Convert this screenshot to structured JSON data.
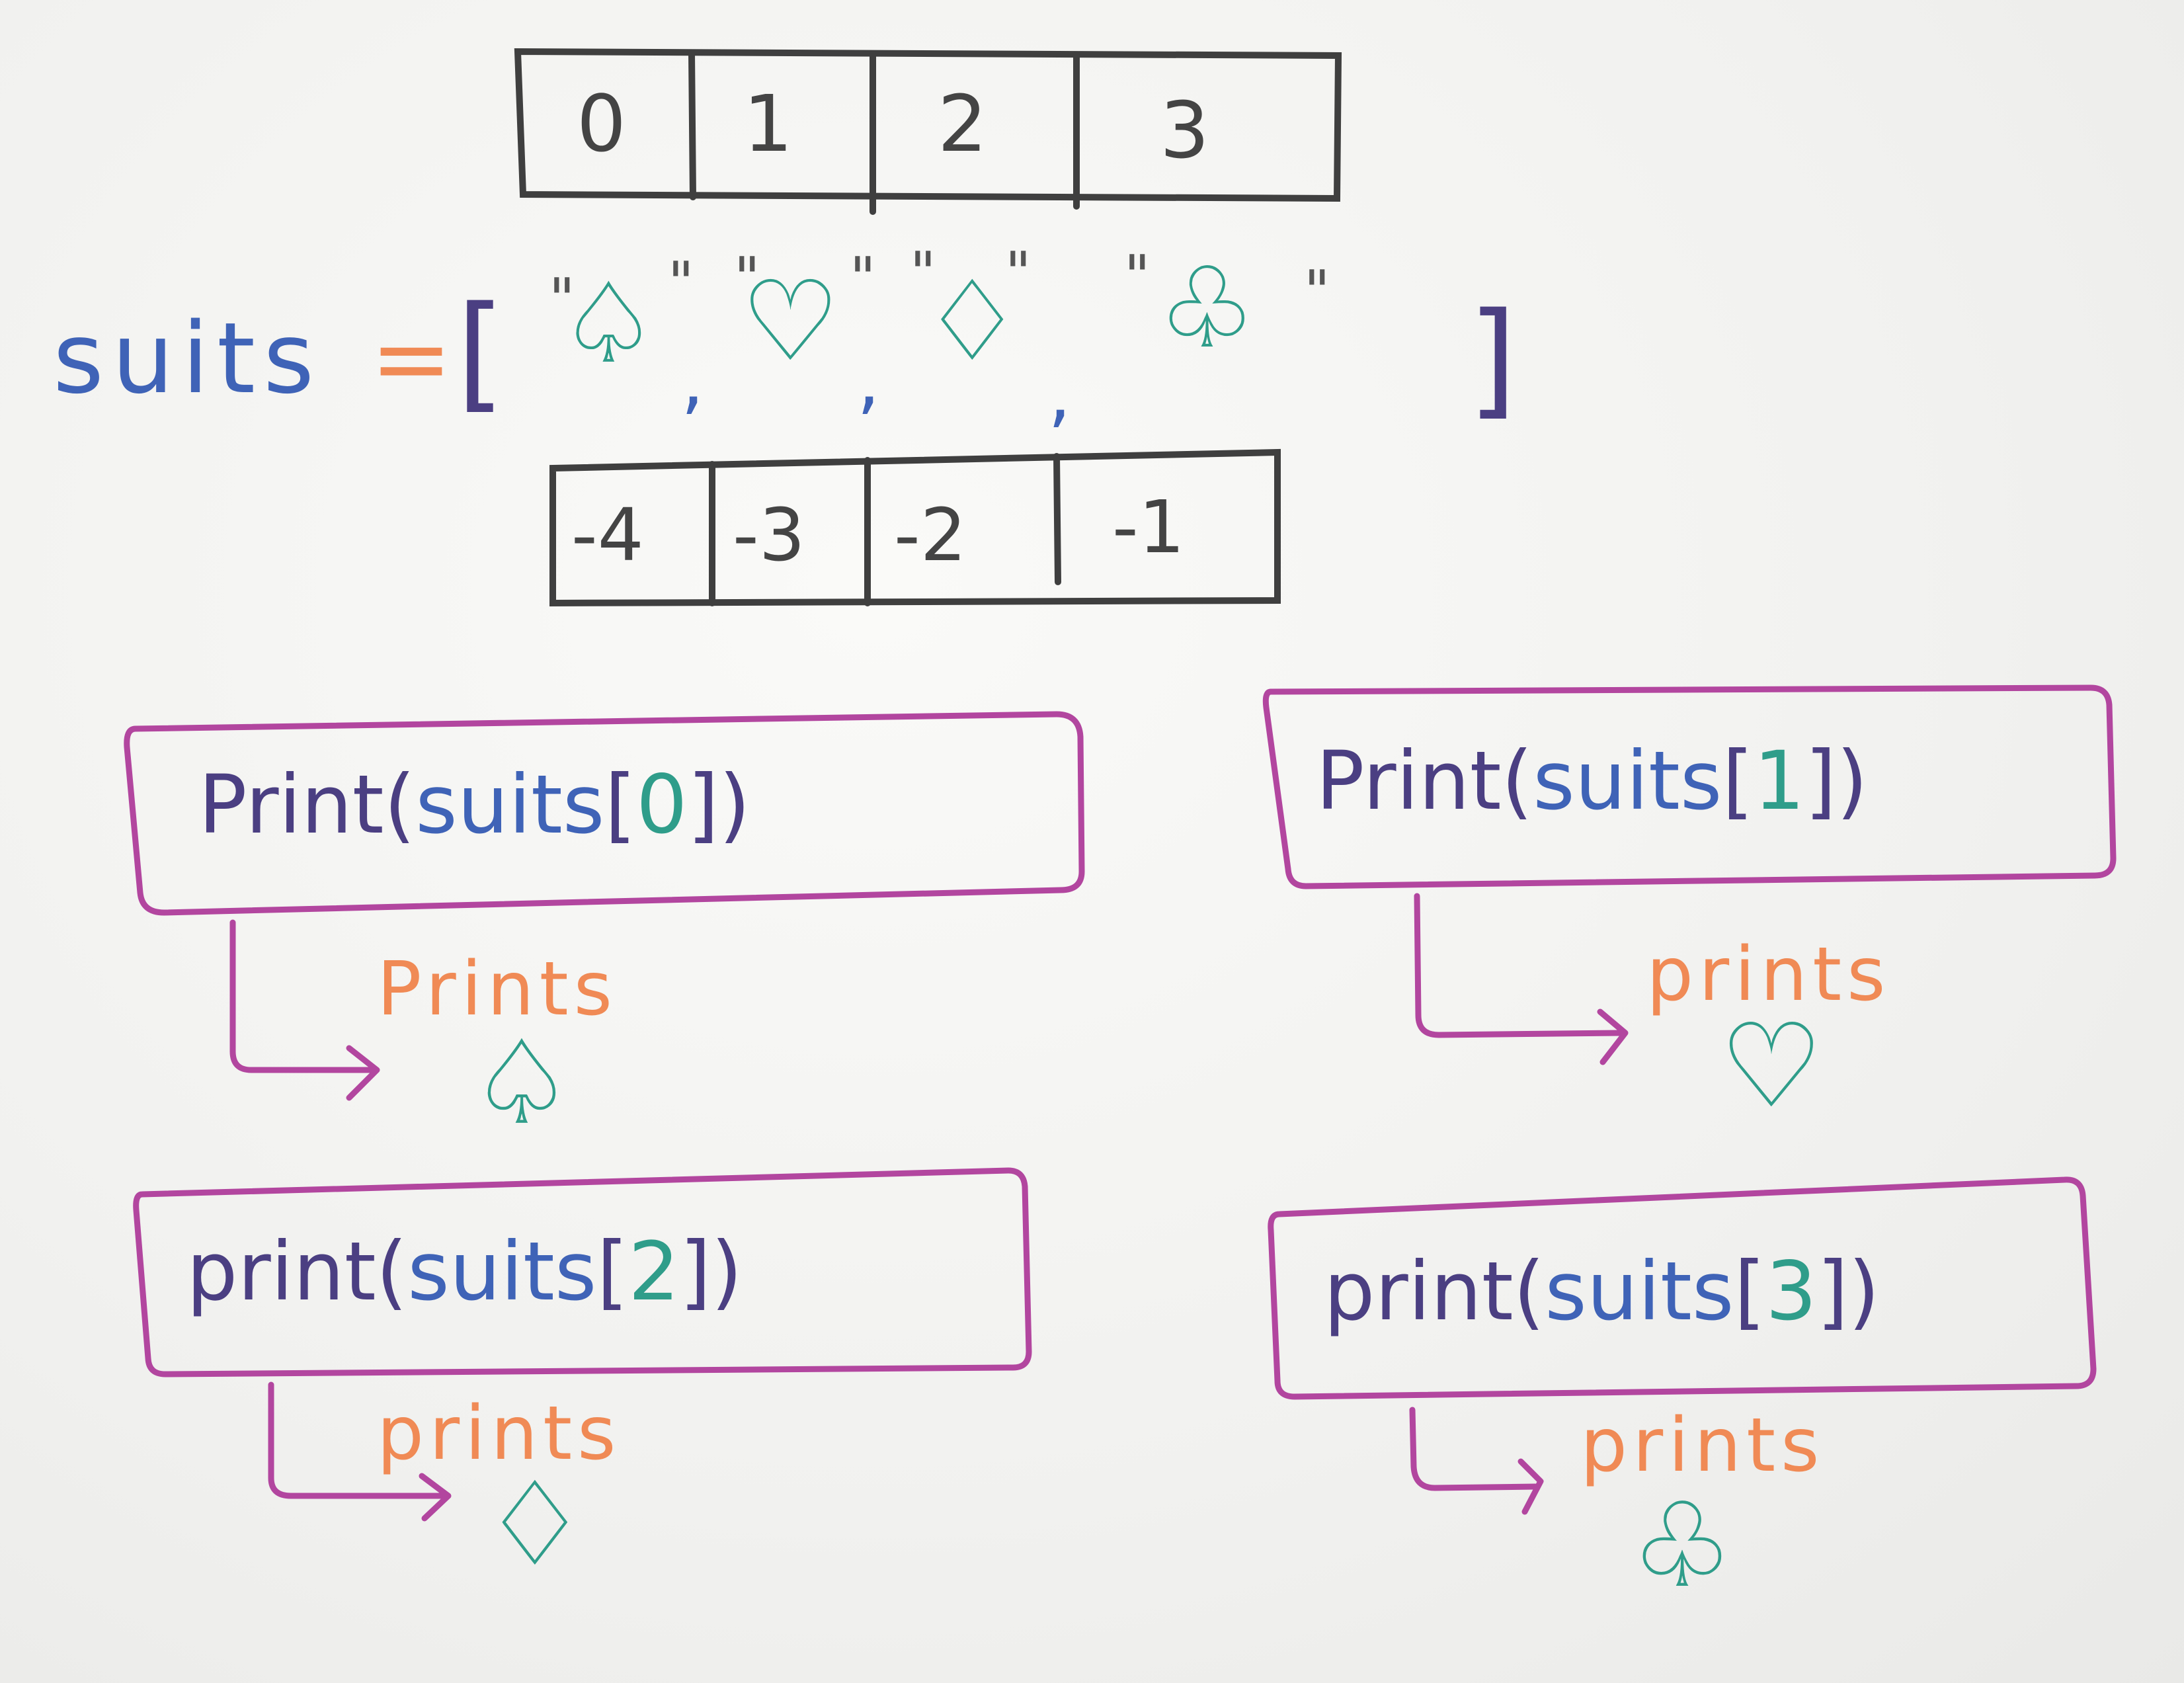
{
  "index_row_positive": [
    "0",
    "1",
    "2",
    "3"
  ],
  "index_row_negative": [
    "-4",
    "-3",
    "-2",
    "-1"
  ],
  "list_assignment": {
    "variable": "suits",
    "equals": "=",
    "open_bracket": "[",
    "close_bracket": "]",
    "quote": "\"",
    "comma": ",",
    "items": [
      "♤",
      "♡",
      "♢",
      "♧"
    ]
  },
  "print_examples": [
    {
      "func": "Print",
      "arg": "suits",
      "index": "0",
      "label": "Prints",
      "output": "♤"
    },
    {
      "func": "Print",
      "arg": "suits",
      "index": "1",
      "label": "prints",
      "output": "♡"
    },
    {
      "func": "print",
      "arg": "suits",
      "index": "2",
      "label": "prints",
      "output": "♢"
    },
    {
      "func": "print",
      "arg": "suits",
      "index": "3",
      "label": "prints",
      "output": "♧"
    }
  ],
  "colors": {
    "black_ink": "#3f3f3f",
    "purple_ink": "#4b3f82",
    "magenta_ink": "#b2469f",
    "teal_ink": "#2f9d8a",
    "blue_ink": "#3f63b7",
    "orange_ink": "#f08a55"
  }
}
